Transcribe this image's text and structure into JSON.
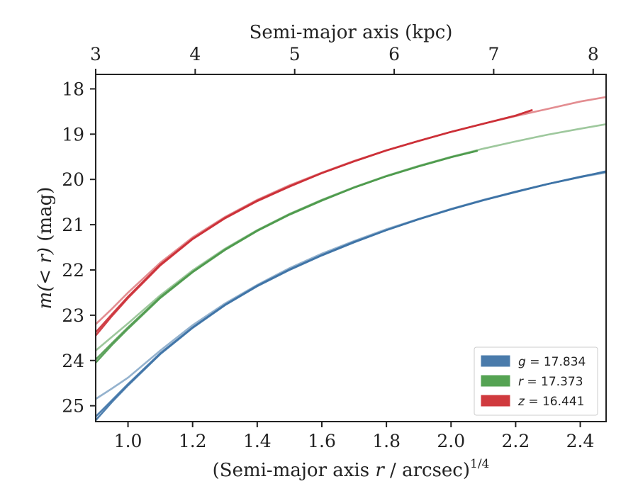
{
  "chart_data": {
    "type": "line",
    "xlabel": "(Semi-major axis r / arcsec)^{1/4}",
    "xlabel_main": "(Semi-major axis ",
    "xlabel_var": "r",
    "xlabel_tail": " / arcsec)",
    "xlabel_sup": "1/4",
    "ylabel": "m(< r) (mag)",
    "ylabel_main": "m(< r)",
    "ylabel_unit": " (mag)",
    "top_xlabel": "Semi-major axis (kpc)",
    "xlim": [
      0.9,
      2.48
    ],
    "ylim": [
      25.35,
      17.68
    ],
    "y_inverted": true,
    "xticks": [
      1.0,
      1.2,
      1.4,
      1.6,
      1.8,
      2.0,
      2.2,
      2.4
    ],
    "xtick_labels": [
      "1.0",
      "1.2",
      "1.4",
      "1.6",
      "1.8",
      "2.0",
      "2.2",
      "2.4"
    ],
    "yticks": [
      18,
      19,
      20,
      21,
      22,
      23,
      24,
      25
    ],
    "ytick_labels": [
      "18",
      "19",
      "20",
      "21",
      "22",
      "23",
      "24",
      "25"
    ],
    "top_xticks": [
      3,
      4,
      5,
      6,
      7,
      8
    ],
    "top_xtick_labels": [
      "3",
      "4",
      "5",
      "6",
      "7",
      "8"
    ],
    "top_xtick_positions": [
      0.9,
      1.208,
      1.516,
      1.824,
      2.132,
      2.44
    ],
    "legend_position": "lower-right",
    "legend": [
      {
        "label": "g = 17.834",
        "var": "g",
        "value": "17.834",
        "color": "#4a7bab"
      },
      {
        "label": "r = 17.373",
        "var": "r",
        "value": "17.373",
        "color": "#55a353"
      },
      {
        "label": "z = 16.441",
        "var": "z",
        "value": "16.441",
        "color": "#d03a3e"
      }
    ],
    "series": [
      {
        "band": "g",
        "color": "#3d72a6",
        "lines": [
          {
            "opacity": 0.9,
            "points": [
              [
                0.9,
                25.32
              ],
              [
                0.95,
                24.92
              ],
              [
                1.0,
                24.55
              ],
              [
                1.1,
                23.86
              ],
              [
                1.2,
                23.28
              ],
              [
                1.3,
                22.78
              ],
              [
                1.4,
                22.36
              ],
              [
                1.5,
                22.0
              ],
              [
                1.6,
                21.68
              ],
              [
                1.7,
                21.39
              ],
              [
                1.8,
                21.12
              ],
              [
                1.9,
                20.88
              ],
              [
                2.0,
                20.66
              ],
              [
                2.1,
                20.46
              ],
              [
                2.2,
                20.28
              ],
              [
                2.3,
                20.1
              ],
              [
                2.4,
                19.95
              ],
              [
                2.48,
                19.82
              ]
            ]
          },
          {
            "opacity": 0.9,
            "points": [
              [
                0.9,
                25.24
              ],
              [
                0.95,
                24.88
              ],
              [
                1.0,
                24.52
              ],
              [
                1.1,
                23.84
              ],
              [
                1.2,
                23.27
              ],
              [
                1.3,
                22.77
              ],
              [
                1.4,
                22.35
              ],
              [
                1.5,
                21.99
              ],
              [
                1.6,
                21.67
              ],
              [
                1.7,
                21.38
              ],
              [
                1.8,
                21.12
              ],
              [
                1.9,
                20.88
              ],
              [
                2.0,
                20.66
              ],
              [
                2.1,
                20.46
              ],
              [
                2.2,
                20.27
              ],
              [
                2.3,
                20.1
              ],
              [
                2.4,
                19.94
              ],
              [
                2.48,
                19.83
              ]
            ]
          },
          {
            "opacity": 0.55,
            "points": [
              [
                0.9,
                24.85
              ],
              [
                0.95,
                24.62
              ],
              [
                1.0,
                24.38
              ],
              [
                1.1,
                23.78
              ],
              [
                1.2,
                23.22
              ],
              [
                1.3,
                22.74
              ],
              [
                1.4,
                22.33
              ],
              [
                1.5,
                21.96
              ],
              [
                1.6,
                21.64
              ],
              [
                1.7,
                21.36
              ],
              [
                1.8,
                21.1
              ],
              [
                1.9,
                20.87
              ],
              [
                2.0,
                20.65
              ],
              [
                2.1,
                20.45
              ],
              [
                2.2,
                20.27
              ],
              [
                2.3,
                20.1
              ],
              [
                2.4,
                19.95
              ],
              [
                2.48,
                19.85
              ]
            ]
          }
        ]
      },
      {
        "band": "r",
        "color": "#4e9a4c",
        "lines": [
          {
            "opacity": 0.9,
            "points": [
              [
                0.9,
                24.05
              ],
              [
                0.95,
                23.66
              ],
              [
                1.0,
                23.3
              ],
              [
                1.1,
                22.62
              ],
              [
                1.2,
                22.05
              ],
              [
                1.3,
                21.56
              ],
              [
                1.4,
                21.14
              ],
              [
                1.5,
                20.78
              ],
              [
                1.6,
                20.47
              ],
              [
                1.7,
                20.18
              ],
              [
                1.8,
                19.93
              ],
              [
                1.9,
                19.71
              ],
              [
                2.0,
                19.51
              ],
              [
                2.08,
                19.37
              ]
            ]
          },
          {
            "opacity": 0.9,
            "points": [
              [
                0.9,
                23.98
              ],
              [
                0.95,
                23.62
              ],
              [
                1.0,
                23.27
              ],
              [
                1.1,
                22.6
              ],
              [
                1.2,
                22.04
              ],
              [
                1.3,
                21.55
              ],
              [
                1.4,
                21.13
              ],
              [
                1.5,
                20.77
              ],
              [
                1.6,
                20.46
              ],
              [
                1.7,
                20.18
              ],
              [
                1.8,
                19.93
              ],
              [
                1.9,
                19.71
              ],
              [
                2.0,
                19.51
              ],
              [
                2.08,
                19.37
              ]
            ]
          },
          {
            "opacity": 0.55,
            "points": [
              [
                0.9,
                23.78
              ],
              [
                0.95,
                23.48
              ],
              [
                1.0,
                23.18
              ],
              [
                1.1,
                22.56
              ],
              [
                1.2,
                22.01
              ],
              [
                1.3,
                21.53
              ],
              [
                1.4,
                21.12
              ],
              [
                1.5,
                20.76
              ],
              [
                1.6,
                20.45
              ],
              [
                1.7,
                20.17
              ],
              [
                1.8,
                19.92
              ],
              [
                1.9,
                19.7
              ],
              [
                2.0,
                19.5
              ],
              [
                2.1,
                19.32
              ],
              [
                2.2,
                19.16
              ],
              [
                2.3,
                19.01
              ],
              [
                2.4,
                18.88
              ],
              [
                2.48,
                18.78
              ]
            ]
          }
        ]
      },
      {
        "band": "z",
        "color": "#cc2f36",
        "lines": [
          {
            "opacity": 0.9,
            "points": [
              [
                0.9,
                23.45
              ],
              [
                0.95,
                23.02
              ],
              [
                1.0,
                22.62
              ],
              [
                1.1,
                21.9
              ],
              [
                1.2,
                21.32
              ],
              [
                1.3,
                20.86
              ],
              [
                1.4,
                20.48
              ],
              [
                1.5,
                20.16
              ],
              [
                1.6,
                19.86
              ],
              [
                1.7,
                19.6
              ],
              [
                1.8,
                19.36
              ],
              [
                1.9,
                19.15
              ],
              [
                2.0,
                18.95
              ],
              [
                2.1,
                18.77
              ],
              [
                2.2,
                18.59
              ],
              [
                2.25,
                18.47
              ]
            ]
          },
          {
            "opacity": 0.9,
            "points": [
              [
                0.9,
                23.38
              ],
              [
                0.95,
                22.98
              ],
              [
                1.0,
                22.59
              ],
              [
                1.1,
                21.88
              ],
              [
                1.2,
                21.31
              ],
              [
                1.3,
                20.85
              ],
              [
                1.4,
                20.47
              ],
              [
                1.5,
                20.15
              ],
              [
                1.6,
                19.86
              ],
              [
                1.7,
                19.6
              ],
              [
                1.8,
                19.36
              ],
              [
                1.9,
                19.15
              ],
              [
                2.0,
                18.95
              ],
              [
                2.1,
                18.77
              ],
              [
                2.2,
                18.59
              ],
              [
                2.25,
                18.47
              ]
            ]
          },
          {
            "opacity": 0.55,
            "points": [
              [
                0.9,
                23.2
              ],
              [
                0.95,
                22.86
              ],
              [
                1.0,
                22.5
              ],
              [
                1.1,
                21.84
              ],
              [
                1.2,
                21.28
              ],
              [
                1.3,
                20.83
              ],
              [
                1.4,
                20.45
              ],
              [
                1.5,
                20.13
              ],
              [
                1.6,
                19.85
              ],
              [
                1.7,
                19.59
              ],
              [
                1.8,
                19.36
              ],
              [
                1.9,
                19.15
              ],
              [
                2.0,
                18.95
              ],
              [
                2.1,
                18.77
              ],
              [
                2.2,
                18.6
              ],
              [
                2.3,
                18.44
              ],
              [
                2.4,
                18.28
              ],
              [
                2.48,
                18.18
              ]
            ]
          }
        ]
      }
    ]
  }
}
